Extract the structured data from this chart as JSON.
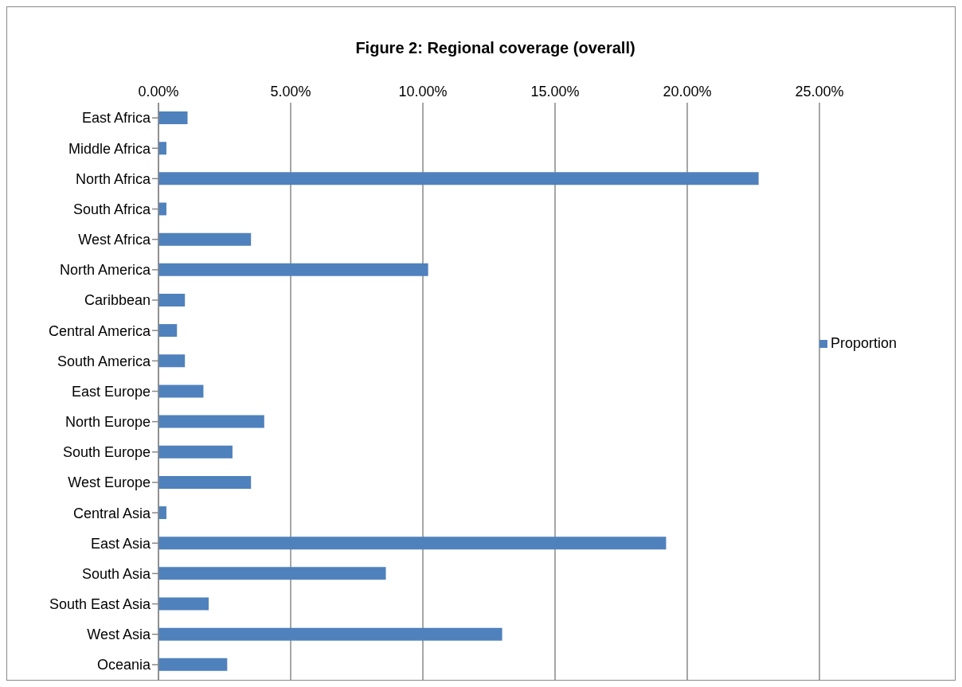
{
  "chart_data": {
    "type": "bar",
    "orientation": "horizontal",
    "title": "Figure 2: Regional coverage (overall)",
    "categories": [
      "East Africa",
      "Middle Africa",
      "North Africa",
      "South Africa",
      "West Africa",
      "North America",
      "Caribbean",
      "Central America",
      "South America",
      "East Europe",
      "North Europe",
      "South Europe",
      "West Europe",
      "Central Asia",
      "East Asia",
      "South Asia",
      "South East Asia",
      "West Asia",
      "Oceania"
    ],
    "series": [
      {
        "name": "Proportion",
        "color": "#4f81bd",
        "values": [
          1.1,
          0.3,
          22.7,
          0.3,
          3.5,
          10.2,
          1.0,
          0.7,
          1.0,
          1.7,
          4.0,
          2.8,
          3.5,
          0.3,
          19.2,
          8.6,
          1.9,
          13.0,
          2.6
        ]
      }
    ],
    "xlim": [
      0,
      25
    ],
    "xticks": [
      {
        "value": 0,
        "label": "0.00%"
      },
      {
        "value": 5,
        "label": "5.00%"
      },
      {
        "value": 10,
        "label": "10.00%"
      },
      {
        "value": 15,
        "label": "15.00%"
      },
      {
        "value": 20,
        "label": "20.00%"
      },
      {
        "value": 25,
        "label": "25.00%"
      }
    ],
    "grid": "x",
    "legend": "right"
  }
}
